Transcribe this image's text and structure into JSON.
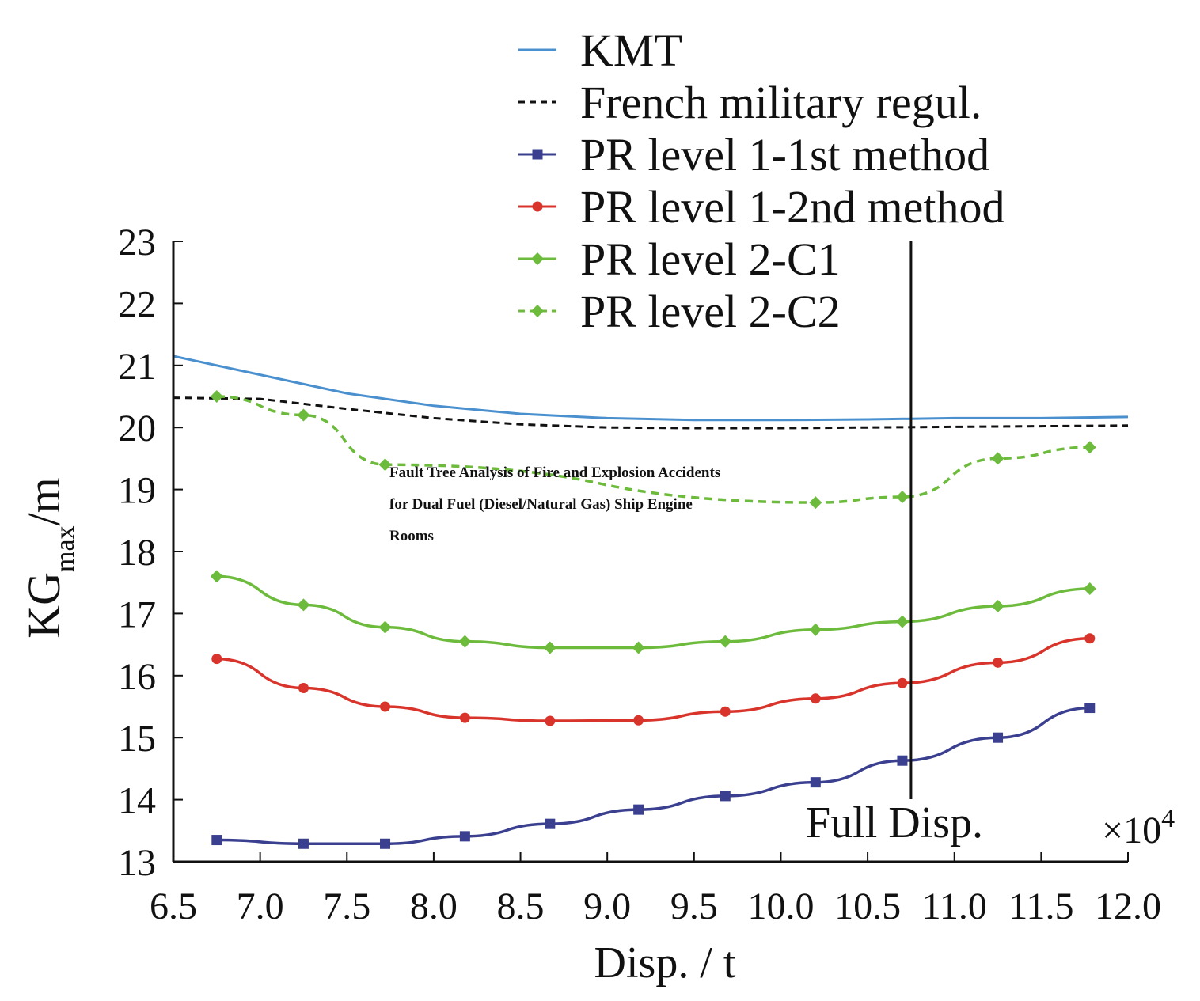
{
  "chart_data": {
    "type": "line",
    "xlabel": "Disp. / t",
    "ylabel_main": "KG",
    "ylabel_sub": "max",
    "ylabel_unit": "/m",
    "x_multiplier_label": "×10",
    "x_multiplier_exp": "4",
    "xlim": [
      6.5,
      12.0
    ],
    "ylim": [
      13,
      23
    ],
    "x_ticks": [
      "6.5",
      "7.0",
      "7.5",
      "8.0",
      "8.5",
      "9.0",
      "9.5",
      "10.0",
      "10.5",
      "11.0",
      "11.5",
      "12.0"
    ],
    "y_ticks": [
      "13",
      "14",
      "15",
      "16",
      "17",
      "18",
      "19",
      "20",
      "21",
      "22",
      "23"
    ],
    "full_disp": {
      "x": 10.75,
      "label": "Full Disp."
    },
    "annotation": {
      "lines": [
        "Fault Tree Analysis of Fire and Explosion Accidents",
        "for Dual Fuel (Diesel/Natural Gas) Ship Engine",
        "Rooms"
      ]
    },
    "series": [
      {
        "name": "KMT",
        "color": "#4a90cf",
        "style": "solid",
        "marker": "none",
        "x": [
          6.5,
          7.0,
          7.5,
          8.0,
          8.5,
          9.0,
          9.5,
          10.0,
          10.5,
          11.0,
          11.5,
          12.0
        ],
        "values": [
          21.15,
          20.85,
          20.55,
          20.35,
          20.22,
          20.15,
          20.12,
          20.12,
          20.13,
          20.15,
          20.15,
          20.17
        ]
      },
      {
        "name": "French military regul.",
        "color": "#111111",
        "style": "dashed",
        "marker": "none",
        "x": [
          6.5,
          7.0,
          7.5,
          8.0,
          8.5,
          9.0,
          9.5,
          10.0,
          10.5,
          11.0,
          11.5,
          12.0
        ],
        "values": [
          20.48,
          20.46,
          20.3,
          20.15,
          20.05,
          20.0,
          19.99,
          19.99,
          20.0,
          20.01,
          20.02,
          20.03
        ]
      },
      {
        "name": "PR level 1-1st method",
        "color": "#3a3f8f",
        "style": "solid",
        "marker": "square",
        "x": [
          6.75,
          7.25,
          7.72,
          8.18,
          8.67,
          9.18,
          9.68,
          10.2,
          10.7,
          11.25,
          11.78
        ],
        "values": [
          13.35,
          13.29,
          13.29,
          13.41,
          13.61,
          13.84,
          14.06,
          14.28,
          14.63,
          15.0,
          15.48
        ]
      },
      {
        "name": "PR level 1-2nd method",
        "color": "#d9342b",
        "style": "solid",
        "marker": "circle",
        "x": [
          6.75,
          7.25,
          7.72,
          8.18,
          8.67,
          9.18,
          9.68,
          10.2,
          10.7,
          11.25,
          11.78
        ],
        "values": [
          16.27,
          15.8,
          15.5,
          15.32,
          15.27,
          15.28,
          15.42,
          15.63,
          15.88,
          16.21,
          16.6
        ]
      },
      {
        "name": "PR level 2-C1",
        "color": "#6dbb3c",
        "style": "solid",
        "marker": "diamond",
        "x": [
          6.75,
          7.25,
          7.72,
          8.18,
          8.67,
          9.18,
          9.68,
          10.2,
          10.7,
          11.25,
          11.78
        ],
        "values": [
          17.6,
          17.14,
          16.78,
          16.55,
          16.45,
          16.45,
          16.55,
          16.74,
          16.87,
          17.12,
          17.4
        ]
      },
      {
        "name": "PR level 2-C2",
        "color": "#6dbb3c",
        "style": "dashed",
        "marker": "diamond",
        "x": [
          6.75,
          7.25,
          7.72,
          10.2,
          10.7,
          11.25,
          11.78
        ],
        "values": [
          20.5,
          20.2,
          19.4,
          18.79,
          18.88,
          19.5,
          19.68
        ]
      }
    ]
  }
}
